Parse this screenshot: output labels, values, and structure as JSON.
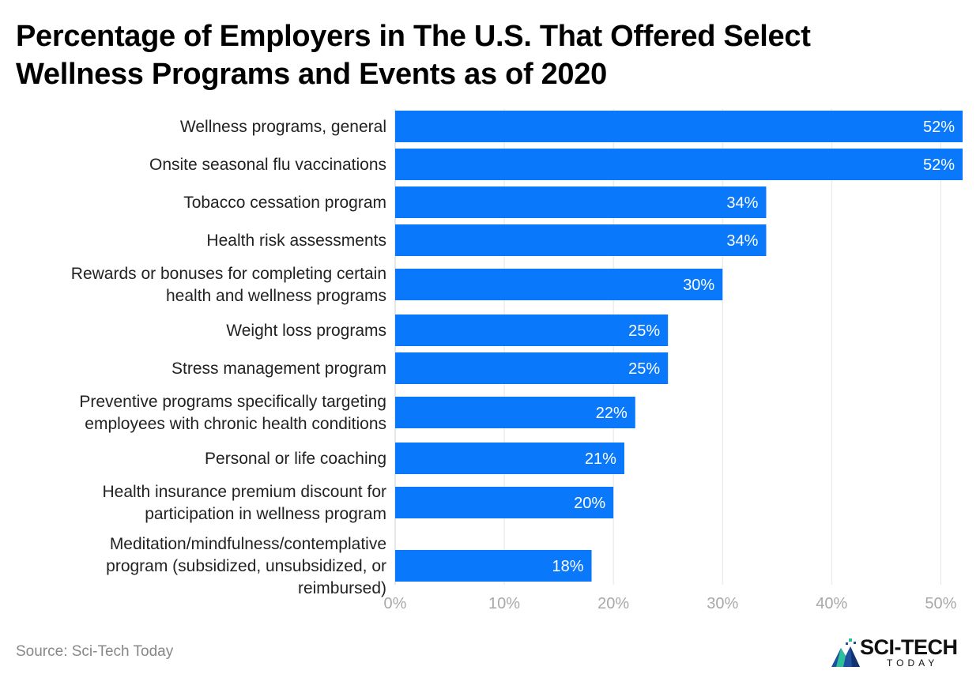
{
  "title_lines": [
    "Percentage of Employers in The U.S. That Offered Select",
    "Wellness Programs and Events as of 2020"
  ],
  "source": "Source: Sci-Tech Today",
  "logo": {
    "main": "SCI-TECH",
    "sub": "TODAY",
    "icon": "mountain-logo-icon"
  },
  "colors": {
    "bar": "#0a78fa",
    "grid": "#e6e6e6",
    "tick": "#a8a8a8"
  },
  "chart_data": {
    "type": "bar",
    "orientation": "horizontal",
    "title": "Percentage of Employers in The U.S. That Offered Select Wellness Programs and Events as of 2020",
    "categories": [
      [
        "Wellness programs, general"
      ],
      [
        "Onsite seasonal flu vaccinations"
      ],
      [
        "Tobacco cessation program"
      ],
      [
        "Health risk assessments"
      ],
      [
        "Rewards or bonuses for completing certain",
        "health and wellness programs"
      ],
      [
        "Weight loss programs"
      ],
      [
        "Stress management program"
      ],
      [
        "Preventive programs specifically targeting",
        "employees with chronic health conditions"
      ],
      [
        "Personal or life coaching"
      ],
      [
        "Health insurance premium discount for",
        "participation in wellness program"
      ],
      [
        "Meditation/mindfulness/contemplative",
        "program (subsidized, unsubsidized, or",
        "reimbursed)"
      ]
    ],
    "values": [
      52,
      52,
      34,
      34,
      30,
      25,
      25,
      22,
      21,
      20,
      18
    ],
    "value_labels": [
      "52%",
      "52%",
      "34%",
      "34%",
      "30%",
      "25%",
      "25%",
      "22%",
      "21%",
      "20%",
      "18%"
    ],
    "xlim": [
      0,
      52
    ],
    "xticks": [
      0,
      10,
      20,
      30,
      40,
      50
    ],
    "xtick_labels": [
      "0%",
      "10%",
      "20%",
      "30%",
      "40%",
      "50%"
    ],
    "grid": true,
    "legend": "none"
  }
}
